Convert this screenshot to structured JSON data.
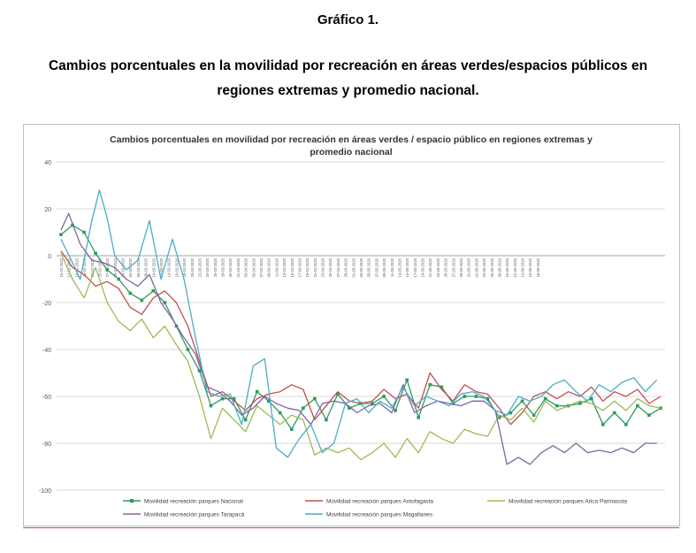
{
  "figure_label": "Gráfico 1.",
  "figure_title_line1": "Cambios porcentuales en la movilidad por recreación en áreas verdes/espacios públicos en",
  "figure_title_line2": "regiones extremas y promedio nacional.",
  "chart_data": {
    "type": "line",
    "title_line1": "Cambios porcentuales en movilidad por recreación en áreas verdes / espacio público en regiones extremas y",
    "title_line2": "promedio nacional",
    "xlabel": "",
    "ylabel": "",
    "ylim": [
      -100,
      40
    ],
    "yticks": [
      40,
      20,
      0,
      -20,
      -40,
      -60,
      -80,
      -100
    ],
    "grid": true,
    "legend_position": "bottom",
    "x_tick_labels": [
      "15-02-2020",
      "17-02-2020",
      "19-02-2020",
      "21-02-2020",
      "23-02-2020",
      "25-02-2020",
      "27-02-2020",
      "29-02-2020",
      "02-03-2020",
      "04-03-2020",
      "06-03-2020",
      "08-03-2020",
      "10-03-2020",
      "12-03-2020",
      "14-03-2020",
      "16-03-2020",
      "18-03-2020",
      "20-03-2020",
      "22-03-2020",
      "24-03-2020",
      "26-03-2020",
      "28-03-2020",
      "30-03-2020",
      "01-04-2020",
      "03-04-2020",
      "05-04-2020",
      "07-04-2020",
      "09-04-2020",
      "11-04-2020",
      "13-04-2020",
      "15-04-2020",
      "17-04-2020",
      "19-04-2020",
      "21-04-2020",
      "23-04-2020",
      "25-04-2020",
      "27-04-2020",
      "29-04-2020",
      "01-05-2020",
      "03-05-2020",
      "05-05-2020",
      "07-05-2020",
      "09-05-2020",
      "11-05-2020",
      "13-05-2020",
      "15-05-2020",
      "17-05-2020",
      "19-05-2020",
      "21-05-2020",
      "23-05-2020",
      "25-05-2020",
      "27-05-2020",
      "29-05-2020",
      "31-05-2020",
      "02-06-2020",
      "04-06-2020",
      "06-06-2020",
      "08-06-2020",
      "10-06-2020",
      "12-06-2020",
      "14-06-2020",
      "16-06-2020",
      "18-06-2020"
    ],
    "series": [
      {
        "name": "Movilidad recreación parques Nacional",
        "color": "#2e9a5c",
        "marker": "square",
        "points": [
          [
            0,
            9
          ],
          [
            3,
            13
          ],
          [
            6,
            10
          ],
          [
            9,
            1
          ],
          [
            12,
            -6
          ],
          [
            15,
            -10
          ],
          [
            18,
            -16
          ],
          [
            21,
            -19
          ],
          [
            24,
            -15
          ],
          [
            27,
            -20
          ],
          [
            30,
            -30
          ],
          [
            33,
            -40
          ],
          [
            36,
            -49
          ],
          [
            39,
            -64
          ],
          [
            42,
            -61
          ],
          [
            45,
            -61
          ],
          [
            48,
            -70
          ],
          [
            51,
            -58
          ],
          [
            54,
            -62
          ],
          [
            57,
            -67
          ],
          [
            60,
            -74
          ],
          [
            63,
            -65
          ],
          [
            66,
            -61
          ],
          [
            69,
            -70
          ],
          [
            72,
            -59
          ],
          [
            75,
            -65
          ],
          [
            78,
            -63
          ],
          [
            81,
            -63
          ],
          [
            84,
            -60
          ],
          [
            87,
            -66
          ],
          [
            90,
            -53
          ],
          [
            93,
            -69
          ],
          [
            96,
            -55
          ],
          [
            99,
            -56
          ],
          [
            102,
            -63
          ],
          [
            105,
            -60
          ],
          [
            108,
            -60
          ],
          [
            111,
            -61
          ],
          [
            114,
            -69
          ],
          [
            117,
            -67
          ],
          [
            120,
            -62
          ],
          [
            123,
            -68
          ],
          [
            126,
            -61
          ],
          [
            129,
            -64
          ],
          [
            132,
            -64
          ],
          [
            135,
            -63
          ],
          [
            138,
            -61
          ],
          [
            141,
            -72
          ],
          [
            144,
            -67
          ],
          [
            147,
            -72
          ],
          [
            150,
            -64
          ],
          [
            153,
            -68
          ],
          [
            156,
            -65
          ]
        ]
      },
      {
        "name": "Movilidad recreación parques Antofagasta",
        "color": "#c0504d",
        "marker": "none",
        "points": [
          [
            0,
            2
          ],
          [
            3,
            -5
          ],
          [
            6,
            -8
          ],
          [
            9,
            -13
          ],
          [
            12,
            -11
          ],
          [
            15,
            -14
          ],
          [
            18,
            -22
          ],
          [
            21,
            -25
          ],
          [
            24,
            -18
          ],
          [
            27,
            -15
          ],
          [
            30,
            -20
          ],
          [
            33,
            -30
          ],
          [
            36,
            -45
          ],
          [
            39,
            -60
          ],
          [
            42,
            -58
          ],
          [
            45,
            -62
          ],
          [
            48,
            -66
          ],
          [
            51,
            -61
          ],
          [
            54,
            -59
          ],
          [
            57,
            -58
          ],
          [
            60,
            -55
          ],
          [
            63,
            -57
          ],
          [
            66,
            -70
          ],
          [
            69,
            -64
          ],
          [
            72,
            -58
          ],
          [
            75,
            -62
          ],
          [
            78,
            -63
          ],
          [
            81,
            -62
          ],
          [
            84,
            -57
          ],
          [
            87,
            -61
          ],
          [
            90,
            -59
          ],
          [
            93,
            -65
          ],
          [
            96,
            -50
          ],
          [
            99,
            -57
          ],
          [
            102,
            -62
          ],
          [
            105,
            -55
          ],
          [
            108,
            -58
          ],
          [
            111,
            -59
          ],
          [
            114,
            -65
          ],
          [
            117,
            -72
          ],
          [
            120,
            -67
          ],
          [
            123,
            -60
          ],
          [
            126,
            -58
          ],
          [
            129,
            -61
          ],
          [
            132,
            -58
          ],
          [
            135,
            -60
          ],
          [
            138,
            -56
          ],
          [
            141,
            -62
          ],
          [
            144,
            -58
          ],
          [
            147,
            -60
          ],
          [
            150,
            -57
          ],
          [
            153,
            -63
          ],
          [
            156,
            -60
          ]
        ]
      },
      {
        "name": "Movilidad recreación parques Arica Parinacota",
        "color": "#9bbb59",
        "marker": "none",
        "points": [
          [
            0,
            1
          ],
          [
            3,
            -10
          ],
          [
            6,
            -18
          ],
          [
            9,
            -5
          ],
          [
            12,
            -20
          ],
          [
            15,
            -28
          ],
          [
            18,
            -32
          ],
          [
            21,
            -27
          ],
          [
            24,
            -35
          ],
          [
            27,
            -30
          ],
          [
            30,
            -38
          ],
          [
            33,
            -45
          ],
          [
            36,
            -60
          ],
          [
            39,
            -78
          ],
          [
            42,
            -65
          ],
          [
            45,
            -70
          ],
          [
            48,
            -75
          ],
          [
            51,
            -64
          ],
          [
            54,
            -68
          ],
          [
            57,
            -72
          ],
          [
            60,
            -68
          ],
          [
            63,
            -70
          ],
          [
            66,
            -85
          ],
          [
            69,
            -82
          ],
          [
            72,
            -84
          ],
          [
            75,
            -82
          ],
          [
            78,
            -87
          ],
          [
            81,
            -84
          ],
          [
            84,
            -80
          ],
          [
            87,
            -86
          ],
          [
            90,
            -78
          ],
          [
            93,
            -84
          ],
          [
            96,
            -75
          ],
          [
            99,
            -78
          ],
          [
            102,
            -80
          ],
          [
            105,
            -74
          ],
          [
            108,
            -76
          ],
          [
            111,
            -77
          ],
          [
            114,
            -68
          ],
          [
            117,
            -70
          ],
          [
            120,
            -65
          ],
          [
            123,
            -71
          ],
          [
            126,
            -62
          ],
          [
            129,
            -66
          ],
          [
            132,
            -64
          ],
          [
            135,
            -62
          ],
          [
            138,
            -63
          ],
          [
            141,
            -66
          ],
          [
            144,
            -62
          ],
          [
            147,
            -66
          ],
          [
            150,
            -61
          ],
          [
            153,
            -64
          ],
          [
            156,
            -65
          ]
        ]
      },
      {
        "name": "Movilidad recreación parques Tarapacá",
        "color": "#8064a2",
        "marker": "none",
        "points": [
          [
            0,
            11
          ],
          [
            2,
            18
          ],
          [
            5,
            5
          ],
          [
            8,
            -2
          ],
          [
            11,
            -3
          ],
          [
            14,
            -5
          ],
          [
            17,
            -10
          ],
          [
            20,
            -13
          ],
          [
            23,
            -8
          ],
          [
            26,
            -20
          ],
          [
            29,
            -27
          ],
          [
            32,
            -35
          ],
          [
            35,
            -42
          ],
          [
            38,
            -56
          ],
          [
            41,
            -58
          ],
          [
            44,
            -62
          ],
          [
            47,
            -68
          ],
          [
            50,
            -65
          ],
          [
            53,
            -60
          ],
          [
            56,
            -63
          ],
          [
            59,
            -65
          ],
          [
            62,
            -66
          ],
          [
            65,
            -72
          ],
          [
            68,
            -63
          ],
          [
            71,
            -62
          ],
          [
            74,
            -63
          ],
          [
            77,
            -67
          ],
          [
            80,
            -64
          ],
          [
            83,
            -63
          ],
          [
            86,
            -67
          ],
          [
            89,
            -55
          ],
          [
            92,
            -67
          ],
          [
            95,
            -64
          ],
          [
            98,
            -62
          ],
          [
            101,
            -63
          ],
          [
            104,
            -64
          ],
          [
            107,
            -62
          ],
          [
            110,
            -62
          ],
          [
            113,
            -66
          ],
          [
            116,
            -89
          ],
          [
            119,
            -86
          ],
          [
            122,
            -89
          ],
          [
            125,
            -84
          ],
          [
            128,
            -81
          ],
          [
            131,
            -84
          ],
          [
            134,
            -80
          ],
          [
            137,
            -84
          ],
          [
            140,
            -83
          ],
          [
            143,
            -84
          ],
          [
            146,
            -82
          ],
          [
            149,
            -84
          ],
          [
            152,
            -80
          ],
          [
            155,
            -80
          ]
        ]
      },
      {
        "name": "Movilidad recreación parques Magallanes",
        "color": "#4bacc6",
        "marker": "none",
        "points": [
          [
            0,
            7
          ],
          [
            3,
            -3
          ],
          [
            5,
            -10
          ],
          [
            8,
            15
          ],
          [
            10,
            28
          ],
          [
            12,
            16
          ],
          [
            14,
            0
          ],
          [
            17,
            -6
          ],
          [
            20,
            -2
          ],
          [
            23,
            15
          ],
          [
            26,
            -10
          ],
          [
            29,
            7
          ],
          [
            32,
            -10
          ],
          [
            35,
            -35
          ],
          [
            38,
            -58
          ],
          [
            41,
            -60
          ],
          [
            44,
            -59
          ],
          [
            47,
            -72
          ],
          [
            50,
            -47
          ],
          [
            53,
            -44
          ],
          [
            56,
            -82
          ],
          [
            59,
            -86
          ],
          [
            62,
            -78
          ],
          [
            65,
            -72
          ],
          [
            68,
            -84
          ],
          [
            71,
            -80
          ],
          [
            74,
            -63
          ],
          [
            77,
            -61
          ],
          [
            80,
            -67
          ],
          [
            83,
            -62
          ],
          [
            86,
            -65
          ],
          [
            89,
            -56
          ],
          [
            92,
            -64
          ],
          [
            95,
            -60
          ],
          [
            98,
            -62
          ],
          [
            101,
            -64
          ],
          [
            104,
            -59
          ],
          [
            107,
            -58
          ],
          [
            110,
            -60
          ],
          [
            113,
            -66
          ],
          [
            116,
            -68
          ],
          [
            119,
            -60
          ],
          [
            122,
            -62
          ],
          [
            125,
            -60
          ],
          [
            128,
            -55
          ],
          [
            131,
            -53
          ],
          [
            134,
            -58
          ],
          [
            137,
            -62
          ],
          [
            140,
            -55
          ],
          [
            143,
            -58
          ],
          [
            146,
            -54
          ],
          [
            149,
            -52
          ],
          [
            152,
            -58
          ],
          [
            155,
            -53
          ]
        ]
      }
    ]
  }
}
